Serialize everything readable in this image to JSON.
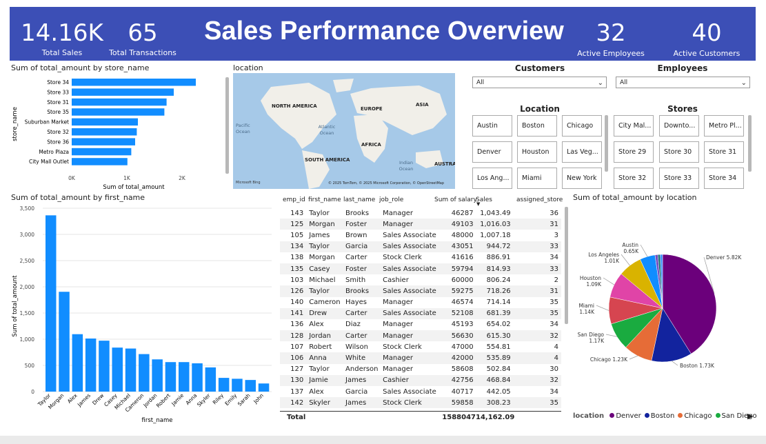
{
  "header": {
    "title": "Sales Performance Overview",
    "kpis": [
      {
        "value": "14.16K",
        "label": "Total Sales"
      },
      {
        "value": "65",
        "label": "Total Transactions"
      },
      {
        "value": "32",
        "label": "Active Employees"
      },
      {
        "value": "40",
        "label": "Active Customers"
      }
    ]
  },
  "store_chart_title": "Sum of total_amount by store_name",
  "map_title": "location",
  "map_labels": [
    "NORTH AMERICA",
    "EUROPE",
    "ASIA",
    "Pacific Ocean",
    "Atlantic Ocean",
    "AFRICA",
    "SOUTH AMERICA",
    "Indian Ocean",
    "AUSTRALIA"
  ],
  "map_attribution": "© 2025 TomTom, © 2025 Microsoft Corporation, © OpenStreetMap",
  "map_logo": "Microsoft Bing",
  "slicers": {
    "customers": {
      "title": "Customers",
      "value": "All"
    },
    "employees": {
      "title": "Employees",
      "value": "All"
    },
    "location": {
      "title": "Location",
      "items": [
        "Austin",
        "Boston",
        "Chicago",
        "Denver",
        "Houston",
        "Las Veg...",
        "Los Ang...",
        "Miami",
        "New York"
      ]
    },
    "stores": {
      "title": "Stores",
      "items": [
        "City Mal...",
        "Downto...",
        "Metro Pl...",
        "Store 29",
        "Store 30",
        "Store 31",
        "Store 32",
        "Store 33",
        "Store 34"
      ]
    }
  },
  "name_chart_title": "Sum of total_amount by first_name",
  "pie_chart_title": "Sum of total_amount by location",
  "table": {
    "headers": [
      "emp_id",
      "first_name",
      "last_name",
      "job_role",
      "Sum of salary",
      "Sales",
      "assigned_store"
    ],
    "rows": [
      [
        "143",
        "Taylor",
        "Brooks",
        "Manager",
        "46287",
        "1,043.49",
        "36"
      ],
      [
        "125",
        "Morgan",
        "Foster",
        "Manager",
        "49103",
        "1,016.03",
        "31"
      ],
      [
        "105",
        "James",
        "Brown",
        "Sales Associate",
        "48000",
        "1,007.18",
        "3"
      ],
      [
        "134",
        "Taylor",
        "Garcia",
        "Sales Associate",
        "43051",
        "944.72",
        "33"
      ],
      [
        "138",
        "Morgan",
        "Carter",
        "Stock Clerk",
        "41616",
        "886.91",
        "34"
      ],
      [
        "135",
        "Casey",
        "Foster",
        "Sales Associate",
        "59794",
        "814.93",
        "33"
      ],
      [
        "103",
        "Michael",
        "Smith",
        "Cashier",
        "60000",
        "806.24",
        "2"
      ],
      [
        "126",
        "Taylor",
        "Brooks",
        "Sales Associate",
        "59275",
        "718.26",
        "31"
      ],
      [
        "140",
        "Cameron",
        "Hayes",
        "Manager",
        "46574",
        "714.14",
        "35"
      ],
      [
        "141",
        "Drew",
        "Carter",
        "Sales Associate",
        "52108",
        "681.39",
        "35"
      ],
      [
        "136",
        "Alex",
        "Diaz",
        "Manager",
        "45193",
        "654.02",
        "34"
      ],
      [
        "128",
        "Jordan",
        "Carter",
        "Manager",
        "56630",
        "615.30",
        "32"
      ],
      [
        "107",
        "Robert",
        "Wilson",
        "Stock Clerk",
        "47000",
        "554.81",
        "4"
      ],
      [
        "106",
        "Anna",
        "White",
        "Manager",
        "42000",
        "535.89",
        "4"
      ],
      [
        "127",
        "Taylor",
        "Anderson",
        "Manager",
        "58608",
        "502.84",
        "30"
      ],
      [
        "130",
        "Jamie",
        "James",
        "Cashier",
        "42756",
        "468.84",
        "32"
      ],
      [
        "137",
        "Alex",
        "Garcia",
        "Sales Associate",
        "40717",
        "442.05",
        "34"
      ],
      [
        "142",
        "Skyler",
        "James",
        "Stock Clerk",
        "59858",
        "308.23",
        "35"
      ]
    ],
    "total_label": "Total",
    "total_salary": "1588047",
    "total_sales": "14,162.09"
  },
  "colors": {
    "banner": "#3c4fb6",
    "bar": "#118dff"
  },
  "chart_data": [
    {
      "type": "bar",
      "orientation": "horizontal",
      "title": "Sum of total_amount by store_name",
      "xlabel": "Sum of total_amount",
      "ylabel": "store_name",
      "categories": [
        "Store 34",
        "Store 33",
        "Store 31",
        "Store 35",
        "Suburban Market",
        "Store 32",
        "Store 36",
        "Metro Plaza",
        "City Mall Outlet"
      ],
      "values": [
        2250,
        1850,
        1720,
        1680,
        1200,
        1180,
        1150,
        1080,
        1010
      ],
      "xlim": [
        0,
        2500
      ],
      "ticks": [
        "0K",
        "1K",
        "2K"
      ]
    },
    {
      "type": "bar",
      "title": "Sum of total_amount by first_name",
      "xlabel": "first_name",
      "ylabel": "Sum of total_amount",
      "categories": [
        "Taylor",
        "Morgan",
        "Alex",
        "James",
        "Drew",
        "Casey",
        "Michael",
        "Cameron",
        "Jordan",
        "Robert",
        "Jamie",
        "Anna",
        "Skyler",
        "Riley",
        "Emily",
        "Sarah",
        "John"
      ],
      "values": [
        3364,
        1905,
        1096,
        1013,
        972,
        840,
        822,
        716,
        615,
        563,
        563,
        540,
        462,
        262,
        245,
        222,
        155
      ],
      "ylim": [
        0,
        3500
      ],
      "ticks": [
        "0",
        "500",
        "1,000",
        "1,500",
        "2,000",
        "2,500",
        "3,000",
        "3,500"
      ]
    },
    {
      "type": "pie",
      "title": "Sum of total_amount by location",
      "legend_title": "location",
      "legend": [
        "Denver",
        "Boston",
        "Chicago",
        "San Diego"
      ],
      "slices": [
        {
          "label": "Denver",
          "value": 5.82,
          "text": "Denver 5.82K",
          "color": "#6b007b"
        },
        {
          "label": "Boston",
          "value": 1.73,
          "text": "Boston 1.73K",
          "color": "#12239e"
        },
        {
          "label": "Chicago",
          "value": 1.23,
          "text": "Chicago 1.23K",
          "color": "#e66c37"
        },
        {
          "label": "San Diego",
          "value": 1.17,
          "text": "San Diego 1.17K",
          "color": "#1aab40"
        },
        {
          "label": "Miami",
          "value": 1.14,
          "text": "Miami 1.14K",
          "color": "#d64550"
        },
        {
          "label": "Houston",
          "value": 1.09,
          "text": "Houston 1.09K",
          "color": "#e044a7"
        },
        {
          "label": "Los Angeles",
          "value": 1.01,
          "text": "Los Angeles 1.01K",
          "color": "#d9b300"
        },
        {
          "label": "Austin",
          "value": 0.65,
          "text": "Austin 0.65K",
          "color": "#118dff"
        },
        {
          "label": "",
          "value": 0.12,
          "text": "",
          "color": "#744ec2"
        },
        {
          "label": "",
          "value": 0.1,
          "text": "",
          "color": "#197278"
        },
        {
          "label": "",
          "value": 0.1,
          "text": "",
          "color": "#4092ff"
        }
      ]
    }
  ]
}
